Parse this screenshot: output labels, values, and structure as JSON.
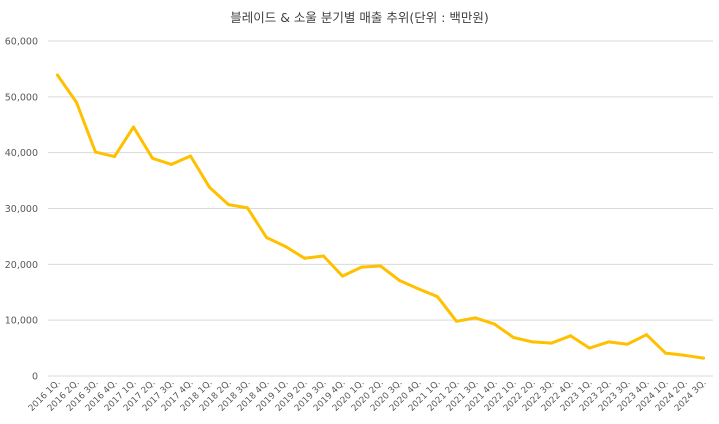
{
  "chart_data": {
    "type": "line",
    "title": "블레이드 & 소울 분기별 매출 추위(단위 : 백만원)",
    "xlabel": "",
    "ylabel": "",
    "ylim": [
      0,
      60000
    ],
    "yticks": [
      0,
      10000,
      20000,
      30000,
      40000,
      50000,
      60000
    ],
    "ytick_labels": [
      "0",
      "10,000",
      "20,000",
      "30,000",
      "40,000",
      "50,000",
      "60,000"
    ],
    "grid": true,
    "legend": "none",
    "colors": {
      "series": "#FFC000",
      "grid": "#D9D9D9",
      "text": "#595959"
    },
    "categories": [
      "2016 1Q.",
      "2016 2Q.",
      "2016 3Q.",
      "2016 4Q.",
      "2017 1Q.",
      "2017 2Q.",
      "2017 3Q.",
      "2017 4Q.",
      "2018 1Q.",
      "2018 2Q.",
      "2018 3Q.",
      "2018 4Q.",
      "2019 1Q.",
      "2019 2Q.",
      "2019 3Q.",
      "2019 4Q.",
      "2020 1Q.",
      "2020 2Q.",
      "2020 3Q.",
      "2020 4Q.",
      "2021 1Q.",
      "2021 2Q.",
      "2021 3Q.",
      "2021 4Q.",
      "2022 1Q.",
      "2022 2Q.",
      "2022 3Q.",
      "2022 4Q.",
      "2023 1Q.",
      "2023 2Q.",
      "2023 3Q.",
      "2023 4Q.",
      "2024 1Q.",
      "2024 2Q.",
      "2024 3Q."
    ],
    "series": [
      {
        "values": [
          53900,
          49000,
          40100,
          39300,
          44600,
          39000,
          37900,
          39400,
          33800,
          30700,
          30100,
          24800,
          23200,
          21100,
          21500,
          17900,
          19500,
          19700,
          17100,
          15600,
          14200,
          9800,
          10400,
          9300,
          6900,
          6100,
          5900,
          7200,
          5000,
          6100,
          5700,
          7400,
          4100,
          3700,
          3200
        ]
      }
    ]
  }
}
